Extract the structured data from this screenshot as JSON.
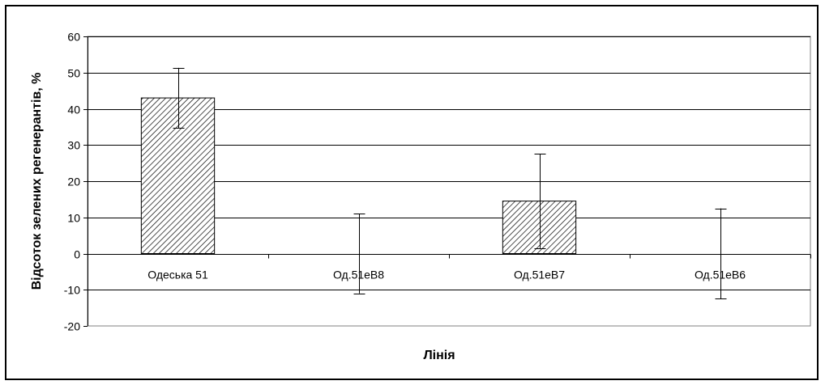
{
  "chart_data": {
    "type": "bar",
    "categories": [
      "Одеська 51",
      "Од.51еВ8",
      "Од.51еВ7",
      "Од.51еВ6"
    ],
    "values": [
      43,
      0,
      14.5,
      0
    ],
    "errors": [
      8.3,
      11,
      13,
      12.5
    ],
    "title": "",
    "xlabel": "Лінія",
    "ylabel": "Відсоток зелених регенерантів, %",
    "ylim": [
      -20,
      60
    ],
    "yticks": [
      -20,
      -10,
      0,
      10,
      20,
      30,
      40,
      50,
      60
    ],
    "grid": true,
    "bar_fill": "diagonal-hatch",
    "colors": {
      "bar_stroke": "#000000",
      "hatch": "#000000",
      "grid": "#000000",
      "plot_bg": "#ffffff"
    }
  }
}
